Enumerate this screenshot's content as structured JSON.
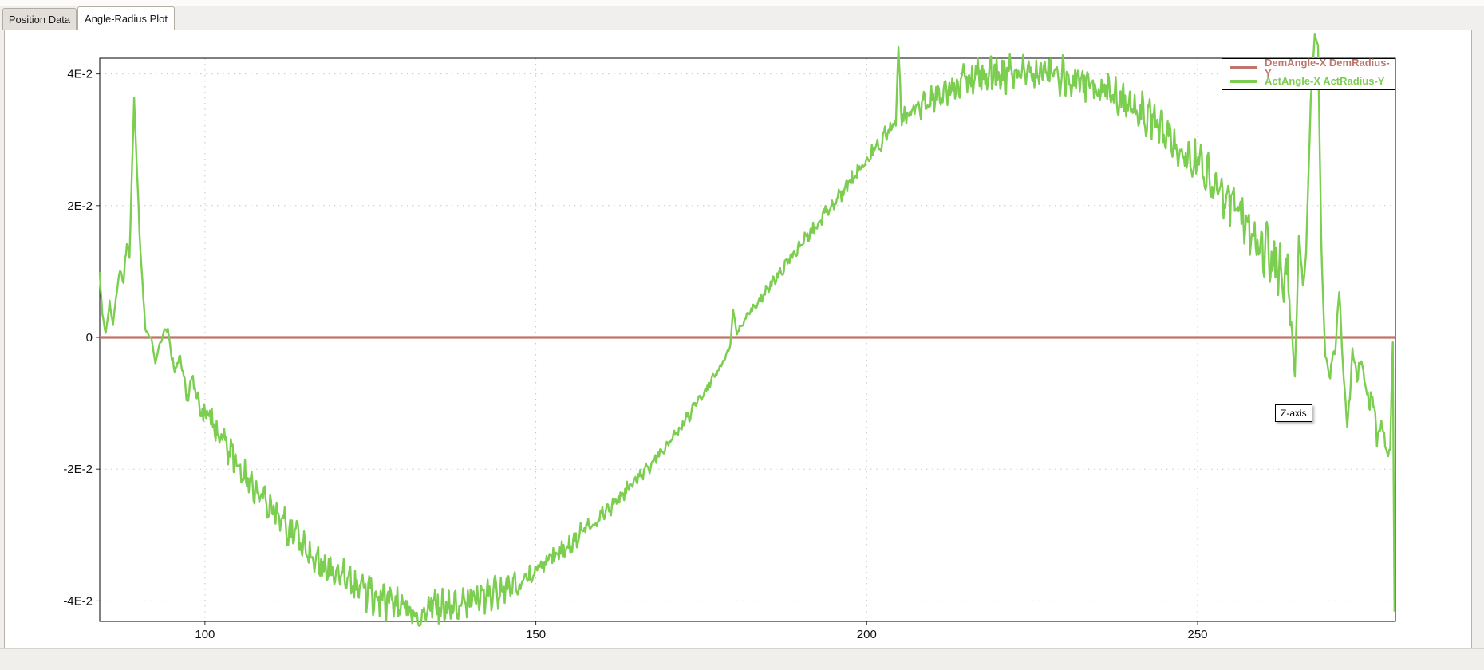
{
  "window": {
    "background": "#f1efed"
  },
  "tabs": [
    {
      "label": "Position Data",
      "active": false
    },
    {
      "label": "Angle-Radius Plot",
      "active": true
    }
  ],
  "tooltip": {
    "text": "Z-axis"
  },
  "legend": {
    "position": "top-right-inside",
    "entries": [
      {
        "label": "DemAngle-X DemRadius-Y",
        "color": "#c0766c"
      },
      {
        "label": "ActAngle-X ActRadius-Y",
        "color": "#7bce4f"
      }
    ]
  },
  "chart_data": {
    "type": "line",
    "title": "",
    "xlabel": "",
    "ylabel": "",
    "xlim": [
      84.1,
      279.9
    ],
    "ylim": [
      -0.0431,
      0.0424
    ],
    "grid": "dotted",
    "grid_color": "#c8c6c3",
    "x_ticks": [
      {
        "value": 100,
        "label": "100"
      },
      {
        "value": 150,
        "label": "150"
      },
      {
        "value": 200,
        "label": "200"
      },
      {
        "value": 250,
        "label": "250"
      }
    ],
    "y_ticks": [
      {
        "value": 0.04,
        "label": "4E-2"
      },
      {
        "value": 0.02,
        "label": "2E-2"
      },
      {
        "value": 0,
        "label": "0"
      },
      {
        "value": -0.02,
        "label": "-2E-2"
      },
      {
        "value": -0.04,
        "label": "-4E-2"
      }
    ],
    "series": [
      {
        "name": "DemAngle-X DemRadius-Y",
        "color": "#c0766c",
        "kind": "constant",
        "y": 0,
        "x_range": [
          84.1,
          279.9
        ],
        "stroke_width": 3.2
      },
      {
        "name": "ActAngle-X ActRadius-Y",
        "color": "#7bce4f",
        "kind": "noisy-anchors",
        "stroke_width": 2.4,
        "y_unit": 0.01,
        "note": "anchors = [x, y in 0.01 units, noise amplitude in 0.01 units]; sine-like sweep min -0.042 near x=133, zero crossing x=180, max +0.041 near x=224, resonance spikes near x=89 and x=268, final plunge at right edge",
        "anchors": [
          [
            84.1,
            0.95,
            0.02
          ],
          [
            84.5,
            0.35,
            0.02
          ],
          [
            85.0,
            0.05,
            0.02
          ],
          [
            85.6,
            0.55,
            0.03
          ],
          [
            86.1,
            0.15,
            0.03
          ],
          [
            86.7,
            0.75,
            0.05
          ],
          [
            87.3,
            1.05,
            0.07
          ],
          [
            87.7,
            0.8,
            0.07
          ],
          [
            88.2,
            1.45,
            0.07
          ],
          [
            88.6,
            1.25,
            0.05
          ],
          [
            89.3,
            3.62,
            0.03
          ],
          [
            90.1,
            1.6,
            0.05
          ],
          [
            91.0,
            0.12,
            0.03
          ],
          [
            91.9,
            -0.02,
            0.02
          ],
          [
            92.5,
            -0.38,
            0.02
          ],
          [
            93.1,
            -0.12,
            0.03
          ],
          [
            93.8,
            0.08,
            0.03
          ],
          [
            94.4,
            0.12,
            0.04
          ],
          [
            95.0,
            -0.35,
            0.06
          ],
          [
            95.7,
            -0.5,
            0.09
          ],
          [
            96.4,
            -0.3,
            0.1
          ],
          [
            97.2,
            -0.9,
            0.12
          ],
          [
            98.2,
            -0.65,
            0.13
          ],
          [
            99.2,
            -1.1,
            0.15
          ],
          [
            100.6,
            -1.2,
            0.17
          ],
          [
            102.2,
            -1.5,
            0.18
          ],
          [
            104.2,
            -1.8,
            0.2
          ],
          [
            106.2,
            -2.1,
            0.2
          ],
          [
            108.2,
            -2.35,
            0.2
          ],
          [
            110.4,
            -2.6,
            0.2
          ],
          [
            112.6,
            -2.9,
            0.22
          ],
          [
            115.4,
            -3.2,
            0.22
          ],
          [
            118.4,
            -3.5,
            0.22
          ],
          [
            121.4,
            -3.7,
            0.24
          ],
          [
            124.4,
            -3.85,
            0.24
          ],
          [
            127.4,
            -4.0,
            0.24
          ],
          [
            130.2,
            -4.05,
            0.22
          ],
          [
            132.3,
            -4.28,
            0.1
          ],
          [
            134.2,
            -4.05,
            0.24
          ],
          [
            137.0,
            -4.12,
            0.24
          ],
          [
            140.0,
            -4.0,
            0.24
          ],
          [
            143.0,
            -3.92,
            0.22
          ],
          [
            146.0,
            -3.8,
            0.2
          ],
          [
            149.2,
            -3.6,
            0.17
          ],
          [
            152.2,
            -3.38,
            0.15
          ],
          [
            155.2,
            -3.12,
            0.14
          ],
          [
            158.2,
            -2.85,
            0.13
          ],
          [
            161.2,
            -2.58,
            0.11
          ],
          [
            164.2,
            -2.28,
            0.1
          ],
          [
            167.2,
            -1.95,
            0.09
          ],
          [
            170.2,
            -1.58,
            0.08
          ],
          [
            173.2,
            -1.18,
            0.08
          ],
          [
            176.2,
            -0.72,
            0.06
          ],
          [
            178.6,
            -0.32,
            0.04
          ],
          [
            179.4,
            -0.12,
            0.02
          ],
          [
            179.8,
            0.42,
            0.01
          ],
          [
            180.4,
            0.06,
            0.03
          ],
          [
            181.6,
            0.28,
            0.05
          ],
          [
            184.2,
            0.62,
            0.07
          ],
          [
            187.2,
            1.02,
            0.08
          ],
          [
            190.2,
            1.42,
            0.09
          ],
          [
            193.2,
            1.82,
            0.1
          ],
          [
            196.2,
            2.2,
            0.11
          ],
          [
            199.2,
            2.58,
            0.12
          ],
          [
            202.2,
            2.95,
            0.13
          ],
          [
            204.4,
            3.3,
            0.1
          ],
          [
            204.8,
            4.42,
            0.03
          ],
          [
            205.3,
            3.32,
            0.12
          ],
          [
            208.2,
            3.52,
            0.17
          ],
          [
            211.2,
            3.7,
            0.2
          ],
          [
            214.2,
            3.85,
            0.22
          ],
          [
            217.2,
            3.95,
            0.24
          ],
          [
            220.2,
            4.0,
            0.26
          ],
          [
            223.2,
            4.05,
            0.26
          ],
          [
            226.2,
            4.0,
            0.26
          ],
          [
            229.2,
            3.95,
            0.26
          ],
          [
            232.2,
            3.88,
            0.25
          ],
          [
            235.2,
            3.78,
            0.24
          ],
          [
            238.2,
            3.62,
            0.24
          ],
          [
            241.2,
            3.45,
            0.26
          ],
          [
            244.2,
            3.2,
            0.28
          ],
          [
            247.2,
            2.92,
            0.28
          ],
          [
            250.2,
            2.6,
            0.3
          ],
          [
            253.2,
            2.25,
            0.32
          ],
          [
            256.2,
            1.9,
            0.36
          ],
          [
            259.2,
            1.5,
            0.4
          ],
          [
            261.6,
            1.18,
            0.42
          ],
          [
            263.6,
            0.88,
            0.3
          ],
          [
            264.7,
            -0.6,
            0.08
          ],
          [
            265.3,
            1.55,
            0.06
          ],
          [
            265.9,
            0.82,
            0.08
          ],
          [
            266.4,
            1.25,
            0.06
          ],
          [
            267.1,
            3.6,
            0.03
          ],
          [
            267.7,
            4.58,
            0.02
          ],
          [
            268.2,
            4.45,
            0.02
          ],
          [
            268.7,
            1.4,
            0.04
          ],
          [
            269.3,
            -0.35,
            0.07
          ],
          [
            269.9,
            -0.55,
            0.09
          ],
          [
            270.7,
            -0.28,
            0.1
          ],
          [
            271.4,
            0.72,
            0.06
          ],
          [
            272.1,
            -0.65,
            0.1
          ],
          [
            272.6,
            -1.35,
            0.08
          ],
          [
            273.4,
            -0.3,
            0.12
          ],
          [
            274.1,
            -0.6,
            0.14
          ],
          [
            274.9,
            -0.42,
            0.16
          ],
          [
            275.6,
            -1.0,
            0.16
          ],
          [
            276.3,
            -0.8,
            0.17
          ],
          [
            277.1,
            -1.45,
            0.18
          ],
          [
            277.9,
            -1.25,
            0.18
          ],
          [
            278.5,
            -1.8,
            0.2
          ],
          [
            279.1,
            -1.6,
            0.12
          ],
          [
            279.5,
            -0.08,
            0.02
          ],
          [
            279.75,
            -4.15,
            0.0
          ]
        ]
      }
    ]
  }
}
